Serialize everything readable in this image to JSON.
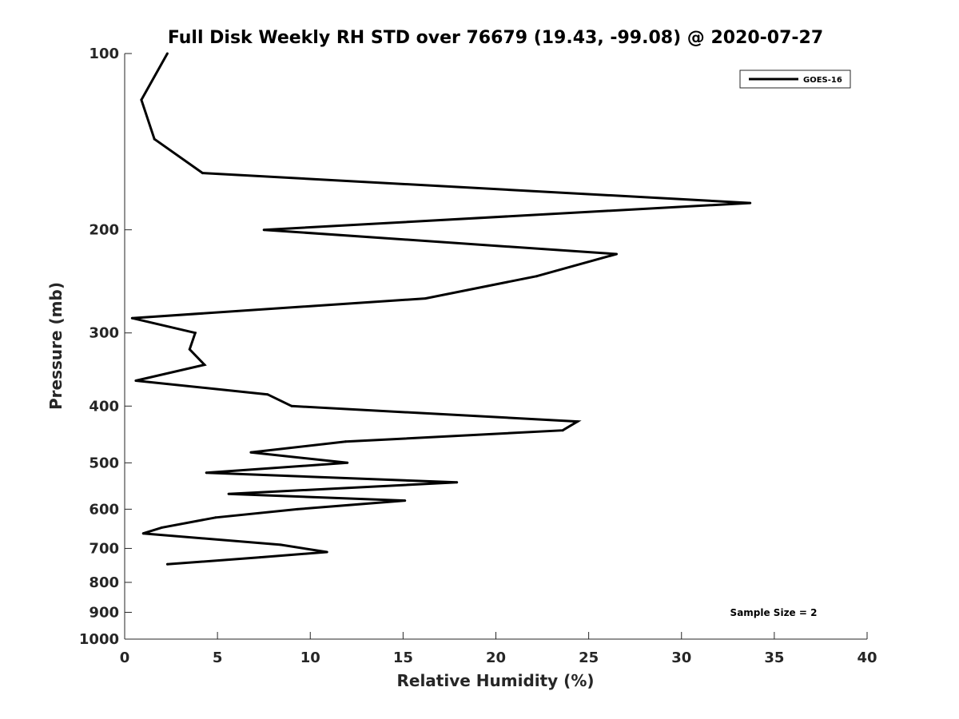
{
  "chart_data": {
    "type": "line",
    "title": "Full Disk Weekly RH STD over 76679 (19.43, -99.08) @ 2020-07-27",
    "xlabel": "Relative Humidity (%)",
    "ylabel": "Pressure (mb)",
    "xlim": [
      0,
      40
    ],
    "ylim": [
      100,
      1000
    ],
    "yscale": "log",
    "grid": false,
    "xticks": [
      0,
      5,
      10,
      15,
      20,
      25,
      30,
      35,
      40
    ],
    "yticks": [
      100,
      200,
      300,
      400,
      500,
      600,
      700,
      800,
      900,
      1000
    ],
    "legend": {
      "position": "top-right",
      "entries": [
        "GOES-16"
      ]
    },
    "annotation": "Sample Size = 2",
    "series": [
      {
        "name": "GOES-16",
        "color": "#000000",
        "x": [
          2.3,
          0.9,
          1.6,
          4.2,
          33.7,
          7.5,
          26.5,
          22.2,
          16.2,
          0.4,
          3.8,
          3.5,
          4.3,
          0.6,
          7.7,
          9.0,
          24.4,
          23.6,
          11.9,
          6.8,
          12.0,
          4.4,
          17.9,
          5.6,
          15.1,
          9.3,
          4.9,
          2.0,
          1.0,
          8.4,
          10.9,
          7.3,
          2.3
        ],
        "y": [
          100,
          120,
          140,
          160,
          180,
          200,
          220,
          240,
          262,
          283,
          300,
          320,
          340,
          362,
          382,
          400,
          425,
          440,
          460,
          480,
          500,
          520,
          540,
          565,
          580,
          600,
          620,
          645,
          660,
          690,
          710,
          725,
          745
        ]
      }
    ]
  }
}
